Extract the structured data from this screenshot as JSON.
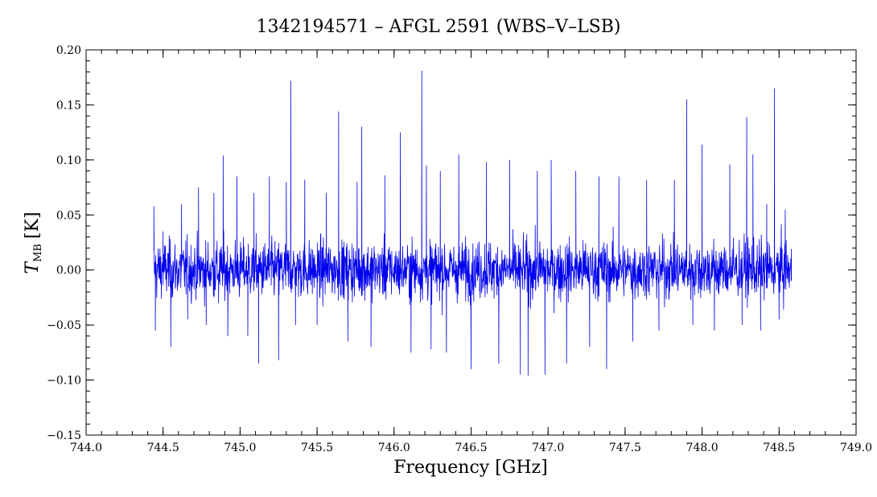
{
  "chart_data": {
    "type": "line",
    "title": "1342194571 – AFGL 2591 (WBS–V–LSB)",
    "xlabel": "Frequency [GHz]",
    "ylabel": {
      "symbol": "T",
      "subscript": "MB",
      "unit": "[K]"
    },
    "xlim": [
      744.0,
      749.0
    ],
    "ylim": [
      -0.15,
      0.2
    ],
    "x_ticks": [
      "744.0",
      "744.5",
      "745.0",
      "745.5",
      "746.0",
      "746.5",
      "747.0",
      "747.5",
      "748.0",
      "748.5",
      "749.0"
    ],
    "y_ticks": [
      "−0.15",
      "−0.10",
      "−0.05",
      "0.00",
      "0.05",
      "0.10",
      "0.15",
      "0.20"
    ],
    "x_minor_step": 0.1,
    "y_minor_step": 0.01,
    "grid": false,
    "series": [
      {
        "color": "#0000ee",
        "x_range": [
          744.44,
          748.58
        ],
        "noise_level": 0.022,
        "points": [
          [
            744.44,
            0.058
          ],
          [
            744.45,
            -0.055
          ],
          [
            744.5,
            0.035
          ],
          [
            744.55,
            -0.07
          ],
          [
            744.62,
            0.06
          ],
          [
            744.66,
            -0.045
          ],
          [
            744.73,
            0.075
          ],
          [
            744.78,
            -0.05
          ],
          [
            744.83,
            0.07
          ],
          [
            744.86,
            -0.03
          ],
          [
            744.89,
            0.104
          ],
          [
            744.92,
            -0.06
          ],
          [
            744.98,
            0.085
          ],
          [
            745.05,
            -0.06
          ],
          [
            745.09,
            0.07
          ],
          [
            745.12,
            -0.085
          ],
          [
            745.19,
            0.085
          ],
          [
            745.25,
            -0.082
          ],
          [
            745.3,
            0.08
          ],
          [
            745.33,
            0.172
          ],
          [
            745.36,
            -0.05
          ],
          [
            745.42,
            0.082
          ],
          [
            745.5,
            -0.05
          ],
          [
            745.56,
            0.07
          ],
          [
            745.64,
            0.144
          ],
          [
            745.7,
            -0.065
          ],
          [
            745.76,
            0.08
          ],
          [
            745.79,
            0.13
          ],
          [
            745.85,
            -0.07
          ],
          [
            745.94,
            0.086
          ],
          [
            746.04,
            0.125
          ],
          [
            746.11,
            -0.075
          ],
          [
            746.18,
            0.181
          ],
          [
            746.21,
            0.095
          ],
          [
            746.24,
            -0.072
          ],
          [
            746.3,
            0.09
          ],
          [
            746.34,
            -0.075
          ],
          [
            746.42,
            0.105
          ],
          [
            746.5,
            -0.09
          ],
          [
            746.6,
            0.098
          ],
          [
            746.68,
            -0.085
          ],
          [
            746.75,
            0.1
          ],
          [
            746.82,
            -0.095
          ],
          [
            746.87,
            -0.096
          ],
          [
            746.93,
            0.09
          ],
          [
            746.98,
            -0.095
          ],
          [
            747.02,
            0.1
          ],
          [
            747.12,
            -0.085
          ],
          [
            747.18,
            0.09
          ],
          [
            747.27,
            -0.07
          ],
          [
            747.33,
            0.085
          ],
          [
            747.38,
            -0.09
          ],
          [
            747.46,
            0.085
          ],
          [
            747.55,
            -0.065
          ],
          [
            747.64,
            0.082
          ],
          [
            747.72,
            -0.055
          ],
          [
            747.82,
            0.082
          ],
          [
            747.9,
            0.155
          ],
          [
            747.94,
            -0.05
          ],
          [
            748.0,
            0.114
          ],
          [
            748.08,
            -0.055
          ],
          [
            748.18,
            0.096
          ],
          [
            748.26,
            -0.05
          ],
          [
            748.29,
            0.139
          ],
          [
            748.33,
            0.105
          ],
          [
            748.38,
            -0.055
          ],
          [
            748.42,
            0.06
          ],
          [
            748.47,
            0.165
          ],
          [
            748.5,
            -0.045
          ],
          [
            748.54,
            0.055
          ],
          [
            748.58,
            -0.01
          ]
        ]
      }
    ]
  }
}
